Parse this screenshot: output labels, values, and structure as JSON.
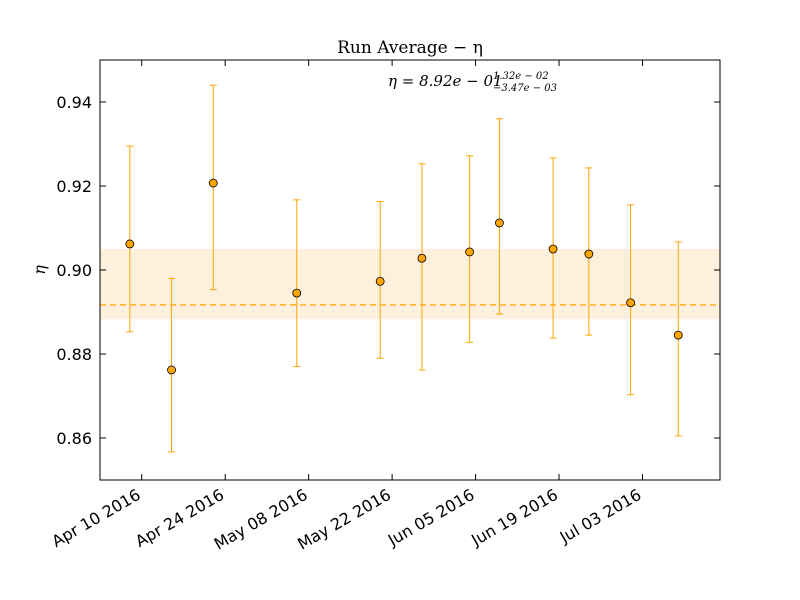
{
  "chart_data": {
    "type": "scatter",
    "title": "Run Average − η",
    "ylabel": "η",
    "xlabel": "",
    "annotation": {
      "prefix": "η = 8.92e − 01",
      "sup": "1.32e − 02",
      "sub": "−3.47e − 03"
    },
    "xlim": [
      "2016-04-03",
      "2016-07-16"
    ],
    "ylim": [
      0.85,
      0.95
    ],
    "yticks": [
      0.86,
      0.88,
      0.9,
      0.92,
      0.94
    ],
    "ytick_labels": [
      "0.86",
      "0.88",
      "0.90",
      "0.92",
      "0.94"
    ],
    "xticks": [
      "2016-04-10",
      "2016-04-24",
      "2016-05-08",
      "2016-05-22",
      "2016-06-05",
      "2016-06-19",
      "2016-07-03"
    ],
    "xtick_labels": [
      "Apr 10 2016",
      "Apr 24 2016",
      "May 08 2016",
      "May 22 2016",
      "Jun 05 2016",
      "Jun 19 2016",
      "Jul 03 2016"
    ],
    "mean": 0.8917,
    "band": [
      0.8883,
      0.905
    ],
    "series": [
      {
        "points": [
          {
            "x": "2016-04-08",
            "y": 0.9062,
            "ylo": 0.8853,
            "yhi": 0.9295
          },
          {
            "x": "2016-04-15",
            "y": 0.8762,
            "ylo": 0.8567,
            "yhi": 0.898
          },
          {
            "x": "2016-04-22",
            "y": 0.9207,
            "ylo": 0.8953,
            "yhi": 0.944
          },
          {
            "x": "2016-05-06",
            "y": 0.8945,
            "ylo": 0.877,
            "yhi": 0.9167
          },
          {
            "x": "2016-05-20",
            "y": 0.8973,
            "ylo": 0.879,
            "yhi": 0.9163
          },
          {
            "x": "2016-05-27",
            "y": 0.9028,
            "ylo": 0.8762,
            "yhi": 0.9253
          },
          {
            "x": "2016-06-04",
            "y": 0.9043,
            "ylo": 0.8828,
            "yhi": 0.9272
          },
          {
            "x": "2016-06-09",
            "y": 0.9112,
            "ylo": 0.8895,
            "yhi": 0.936
          },
          {
            "x": "2016-06-18",
            "y": 0.905,
            "ylo": 0.8838,
            "yhi": 0.9267
          },
          {
            "x": "2016-06-24",
            "y": 0.9038,
            "ylo": 0.8845,
            "yhi": 0.9243
          },
          {
            "x": "2016-07-01",
            "y": 0.8922,
            "ylo": 0.8703,
            "yhi": 0.9155
          },
          {
            "x": "2016-07-09",
            "y": 0.8845,
            "ylo": 0.8605,
            "yhi": 0.9067
          }
        ]
      }
    ],
    "colors": {
      "marker": "#ffa500",
      "marker_edge": "#000000",
      "errorbar": "#ffa500",
      "band": "#fdf0dc",
      "mean_line": "#ffa500"
    },
    "grid": false
  }
}
